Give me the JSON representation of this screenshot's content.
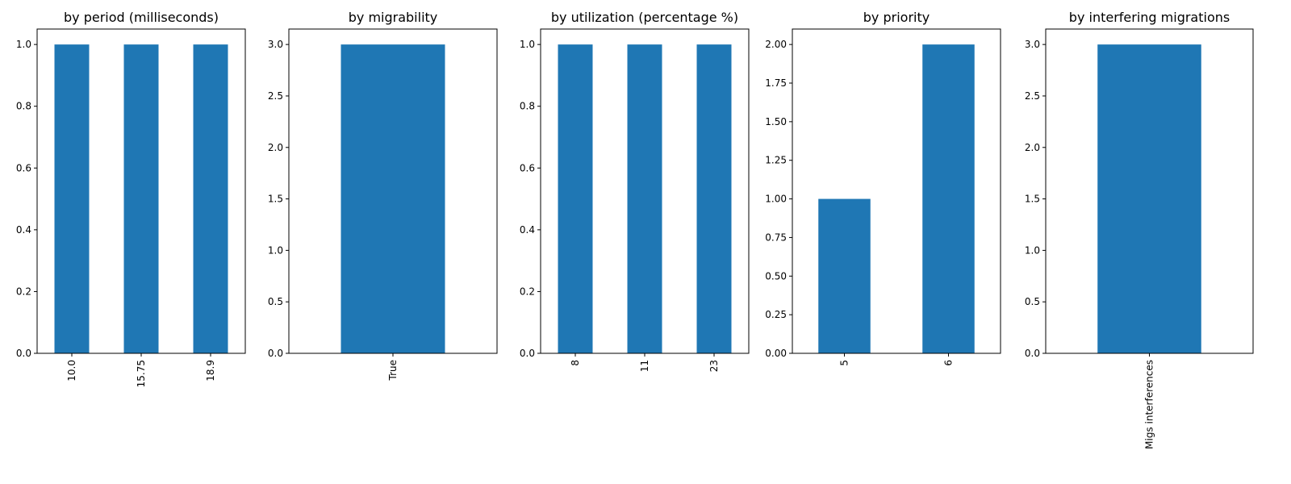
{
  "figure": {
    "background": "#ffffff",
    "bar_color": "#1f77b4"
  },
  "chart_data": [
    {
      "type": "bar",
      "title": "by period (milliseconds)",
      "categories": [
        "10.0",
        "15.75",
        "18.9"
      ],
      "values": [
        1,
        1,
        1
      ],
      "ylim": [
        0,
        1.05
      ],
      "yticks": [
        "0.0",
        "0.2",
        "0.4",
        "0.6",
        "0.8",
        "1.0"
      ],
      "xlabel": "",
      "ylabel": "",
      "grid": false
    },
    {
      "type": "bar",
      "title": "by migrability",
      "categories": [
        "True"
      ],
      "values": [
        3
      ],
      "ylim": [
        0,
        3.15
      ],
      "yticks": [
        "0.0",
        "0.5",
        "1.0",
        "1.5",
        "2.0",
        "2.5",
        "3.0"
      ],
      "xlabel": "",
      "ylabel": "",
      "grid": false
    },
    {
      "type": "bar",
      "title": "by utilization (percentage %)",
      "categories": [
        "8",
        "11",
        "23"
      ],
      "values": [
        1,
        1,
        1
      ],
      "ylim": [
        0,
        1.05
      ],
      "yticks": [
        "0.0",
        "0.2",
        "0.4",
        "0.6",
        "0.8",
        "1.0"
      ],
      "xlabel": "",
      "ylabel": "",
      "grid": false
    },
    {
      "type": "bar",
      "title": "by priority",
      "categories": [
        "5",
        "6"
      ],
      "values": [
        1,
        2
      ],
      "ylim": [
        0,
        2.1
      ],
      "yticks": [
        "0.00",
        "0.25",
        "0.50",
        "0.75",
        "1.00",
        "1.25",
        "1.50",
        "1.75",
        "2.00"
      ],
      "xlabel": "",
      "ylabel": "",
      "grid": false
    },
    {
      "type": "bar",
      "title": "by interfering migrations",
      "categories": [
        "Migs interferences"
      ],
      "values": [
        3
      ],
      "ylim": [
        0,
        3.15
      ],
      "yticks": [
        "0.0",
        "0.5",
        "1.0",
        "1.5",
        "2.0",
        "2.5",
        "3.0"
      ],
      "xlabel": "",
      "ylabel": "",
      "grid": false
    }
  ]
}
